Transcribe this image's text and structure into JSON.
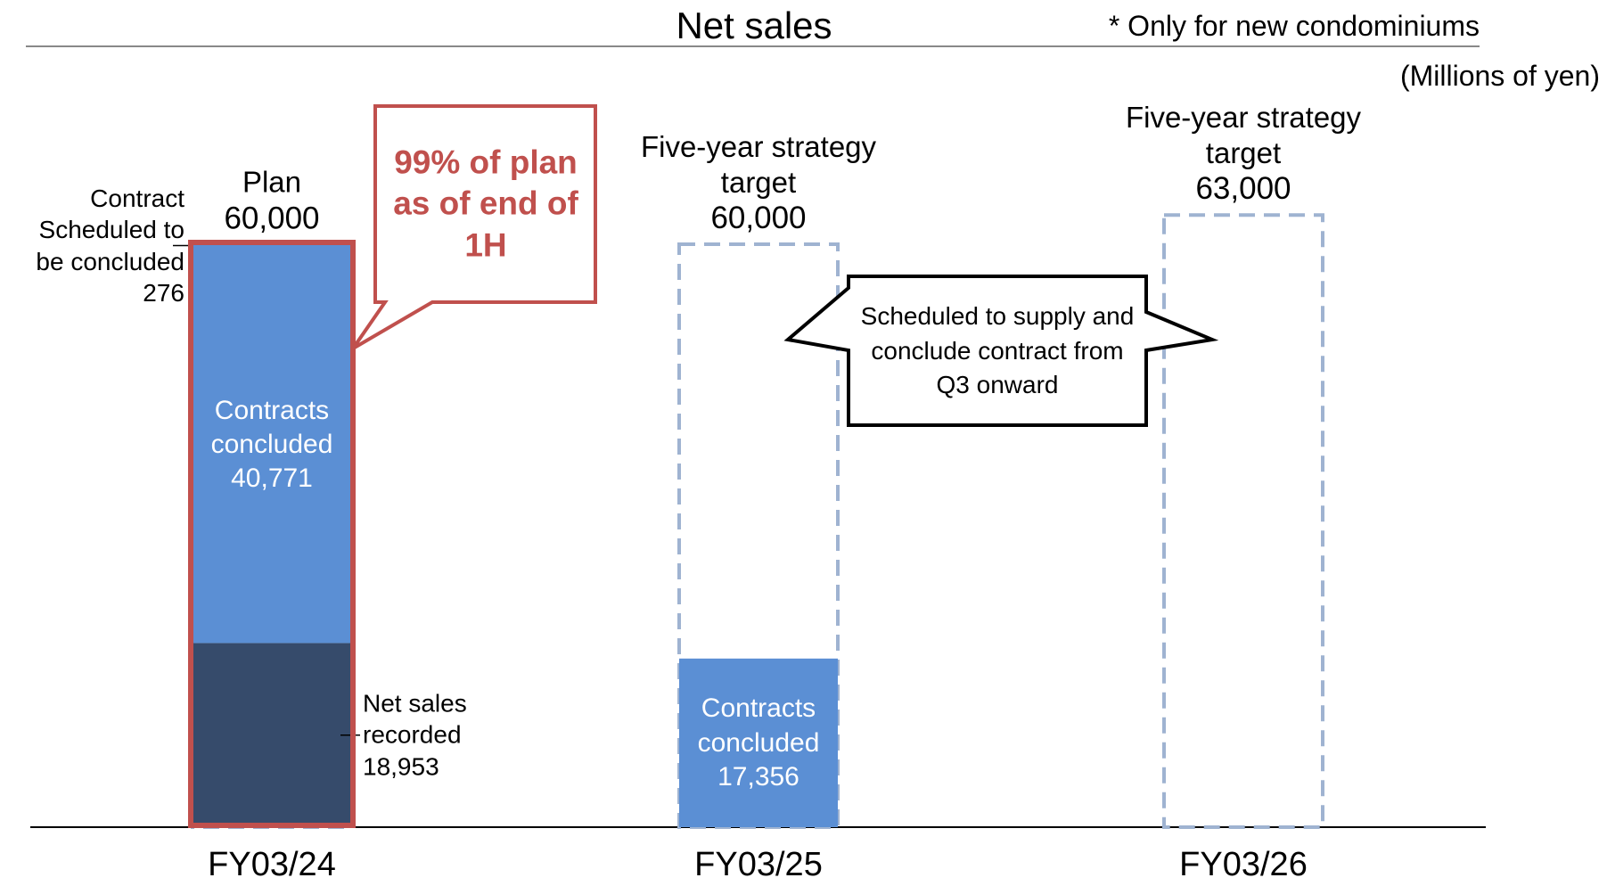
{
  "chart_data": {
    "type": "bar",
    "stacked": true,
    "title": "Net sales",
    "note": "* Only for new condominiums",
    "unit": "(Millions of yen)",
    "categories": [
      "FY03/24",
      "FY03/25",
      "FY03/26"
    ],
    "ylim": [
      0,
      70000
    ],
    "series": [
      {
        "name": "Net sales recorded",
        "color": "#364b6b",
        "values": [
          18953,
          null,
          null
        ],
        "value_labels": [
          "18,953",
          null,
          null
        ]
      },
      {
        "name": "Contracts concluded",
        "color": "#5b8fd4",
        "values": [
          40771,
          17356,
          null
        ],
        "value_labels": [
          "40,771",
          "17,356",
          null
        ]
      },
      {
        "name": "Contract Scheduled to be concluded",
        "color": "#5b8fd4",
        "values": [
          276,
          null,
          null
        ],
        "value_labels": [
          "276",
          null,
          null
        ]
      }
    ],
    "targets": {
      "labels": [
        "Plan",
        "Five-year strategy target",
        "Five-year strategy target"
      ],
      "values": [
        60000,
        60000,
        63000
      ],
      "value_labels": [
        "60,000",
        "60,000",
        "63,000"
      ],
      "color": "#9fb3d1"
    },
    "annotations": [
      "99% of plan as of end of 1H",
      "Scheduled to supply and conclude contract from Q3 onward"
    ],
    "highlight": {
      "category": 0,
      "color": "#c0504d"
    }
  }
}
